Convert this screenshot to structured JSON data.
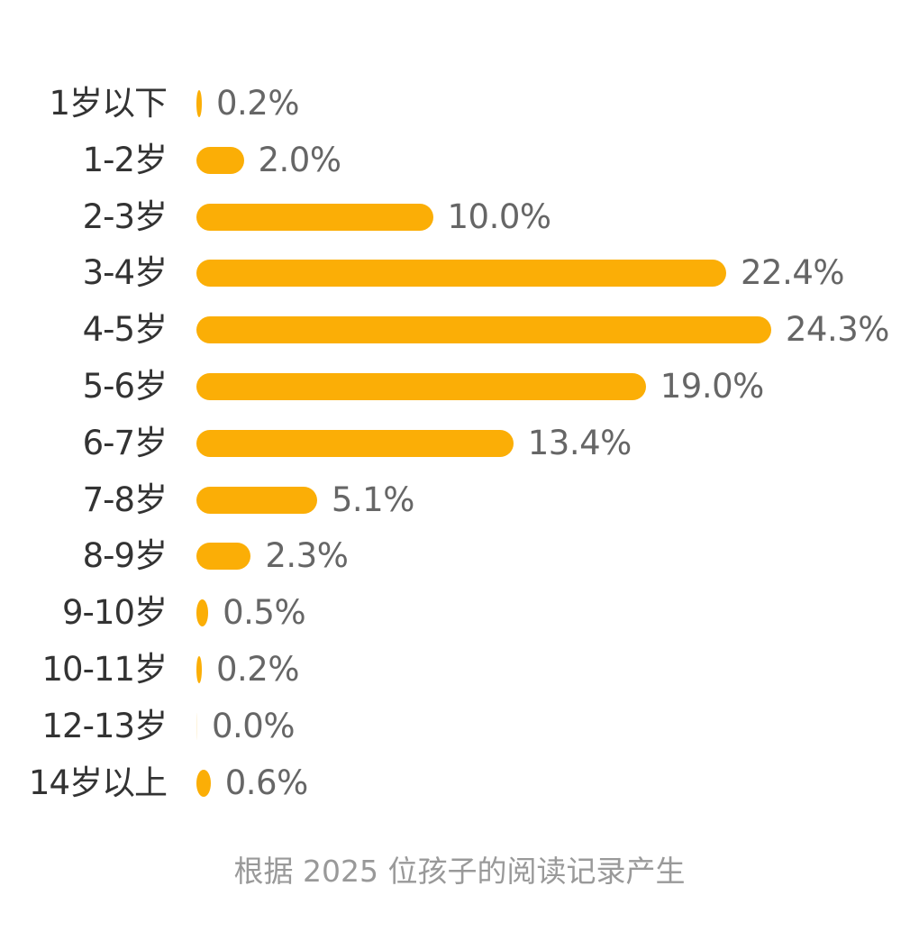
{
  "chart_data": {
    "type": "bar",
    "orientation": "horizontal",
    "title": "",
    "xlabel": "",
    "ylabel": "",
    "categories": [
      "1岁以下",
      "1-2岁",
      "2-3岁",
      "3-4岁",
      "4-5岁",
      "5-6岁",
      "6-7岁",
      "7-8岁",
      "8-9岁",
      "9-10岁",
      "10-11岁",
      "12-13岁",
      "14岁以上"
    ],
    "values": [
      0.2,
      2.0,
      10.0,
      22.4,
      24.3,
      19.0,
      13.4,
      5.1,
      2.3,
      0.5,
      0.2,
      0.0,
      0.6
    ],
    "value_labels": [
      "0.2%",
      "2.0%",
      "10.0%",
      "22.4%",
      "24.3%",
      "19.0%",
      "13.4%",
      "5.1%",
      "2.3%",
      "0.5%",
      "0.2%",
      "0.0%",
      "0.6%"
    ],
    "unit": "%",
    "grid": false,
    "legend": null,
    "bar_color": "#FBAE06",
    "annotation": "根据 2025 位孩子的阅读记录产生"
  },
  "footer": {
    "text": "根据 2025 位孩子的阅读记录产生"
  }
}
